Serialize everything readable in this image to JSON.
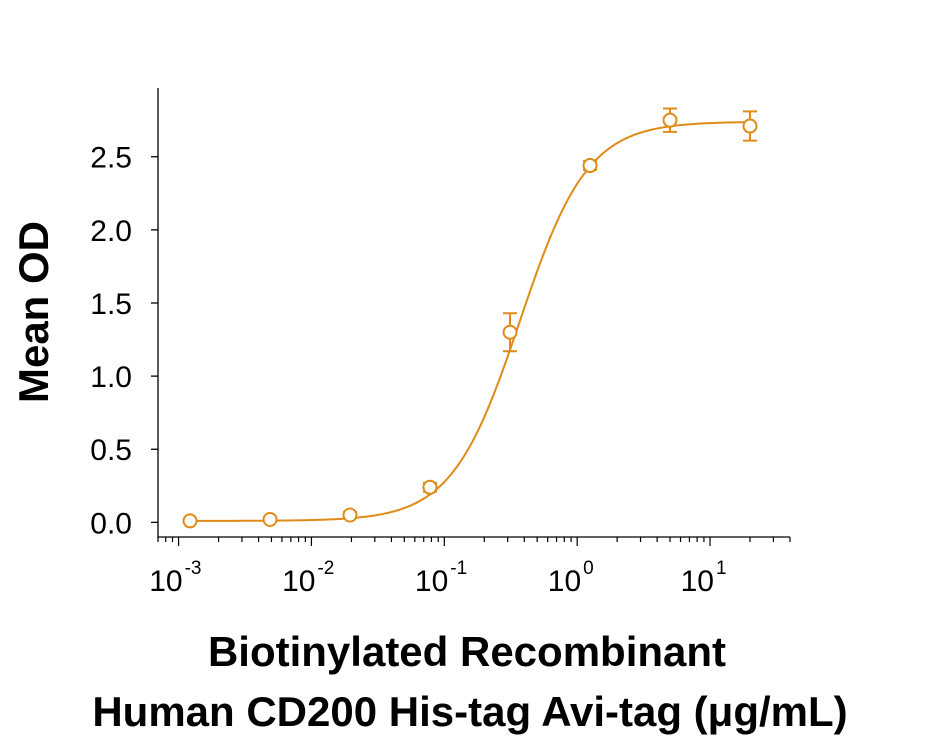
{
  "chart_data": {
    "type": "scatter",
    "title": "",
    "xlabel_line1": "Biotinylated Recombinant",
    "xlabel_line2": "Human CD200 His-tag Avi-tag (μg/mL)",
    "ylabel": "Mean OD",
    "x_scale": "log",
    "xlim": [
      0.0007,
      40
    ],
    "ylim": [
      -0.1,
      2.97
    ],
    "grid": false,
    "legend": "none",
    "color": "#E08A17",
    "x_ticks": [
      {
        "mantissa": "10",
        "exp": "-3"
      },
      {
        "mantissa": "10",
        "exp": "-2"
      },
      {
        "mantissa": "10",
        "exp": "-1"
      },
      {
        "mantissa": "10",
        "exp": "0"
      },
      {
        "mantissa": "10",
        "exp": "1"
      }
    ],
    "y_ticks": [
      "0.0",
      "0.5",
      "1.0",
      "1.5",
      "2.0",
      "2.5"
    ],
    "series": [
      {
        "x": [
          0.00122,
          0.00488,
          0.0195,
          0.078,
          0.3125,
          1.25,
          5,
          20
        ],
        "y": [
          0.01,
          0.02,
          0.05,
          0.24,
          1.3,
          2.44,
          2.75,
          2.71
        ],
        "err": [
          0.01,
          0.01,
          0.02,
          0.03,
          0.13,
          0.03,
          0.08,
          0.1
        ]
      }
    ],
    "fit": {
      "bottom": 0.01,
      "top": 2.74,
      "ec50": 0.37,
      "hill": 1.7
    }
  }
}
